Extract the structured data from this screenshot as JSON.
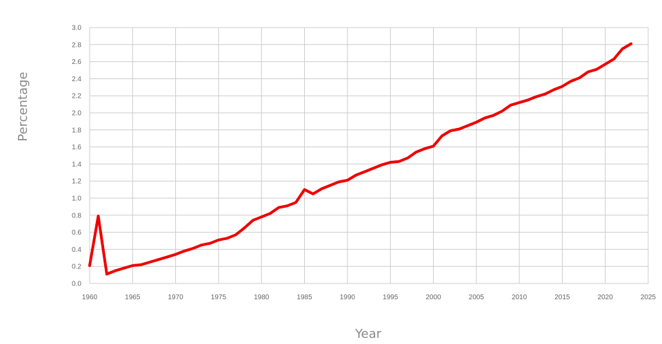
{
  "chart_data": {
    "type": "line",
    "title": "",
    "xlabel": "Year",
    "ylabel": "Percentage",
    "xlim": [
      1960,
      2025
    ],
    "ylim": [
      0,
      3.0
    ],
    "x_ticks": [
      1960,
      1965,
      1970,
      1975,
      1980,
      1985,
      1990,
      1995,
      2000,
      2005,
      2010,
      2015,
      2020,
      2025
    ],
    "y_ticks": [
      0,
      0.2,
      0.4,
      0.6,
      0.8,
      1.0,
      1.2,
      1.4,
      1.6,
      1.8,
      2.0,
      2.2,
      2.4,
      2.6,
      2.8,
      3.0
    ],
    "grid": true,
    "legend": "none",
    "colors": {
      "line": "#ee0000",
      "grid": "#cccccc",
      "text": "#666666",
      "axis_title": "#8a8a8a"
    },
    "series": [
      {
        "x": [
          1960,
          1961,
          1962,
          1963,
          1964,
          1965,
          1966,
          1967,
          1968,
          1969,
          1970,
          1971,
          1972,
          1973,
          1974,
          1975,
          1976,
          1977,
          1978,
          1979,
          1980,
          1981,
          1982,
          1983,
          1984,
          1985,
          1986,
          1987,
          1988,
          1989,
          1990,
          1991,
          1992,
          1993,
          1994,
          1995,
          1996,
          1997,
          1998,
          1999,
          2000,
          2001,
          2002,
          2003,
          2004,
          2005,
          2006,
          2007,
          2008,
          2009,
          2010,
          2011,
          2012,
          2013,
          2014,
          2015,
          2016,
          2017,
          2018,
          2019,
          2020,
          2021,
          2022,
          2023
        ],
        "values": [
          0.21,
          0.79,
          0.11,
          0.15,
          0.18,
          0.21,
          0.22,
          0.25,
          0.28,
          0.31,
          0.34,
          0.38,
          0.41,
          0.45,
          0.47,
          0.51,
          0.53,
          0.57,
          0.65,
          0.74,
          0.78,
          0.82,
          0.89,
          0.91,
          0.95,
          1.1,
          1.05,
          1.11,
          1.15,
          1.19,
          1.21,
          1.27,
          1.31,
          1.35,
          1.39,
          1.42,
          1.43,
          1.47,
          1.54,
          1.58,
          1.61,
          1.73,
          1.79,
          1.81,
          1.85,
          1.89,
          1.94,
          1.97,
          2.02,
          2.09,
          2.12,
          2.15,
          2.19,
          2.22,
          2.27,
          2.31,
          2.37,
          2.41,
          2.48,
          2.51,
          2.57,
          2.63,
          2.75,
          2.81
        ]
      }
    ]
  }
}
